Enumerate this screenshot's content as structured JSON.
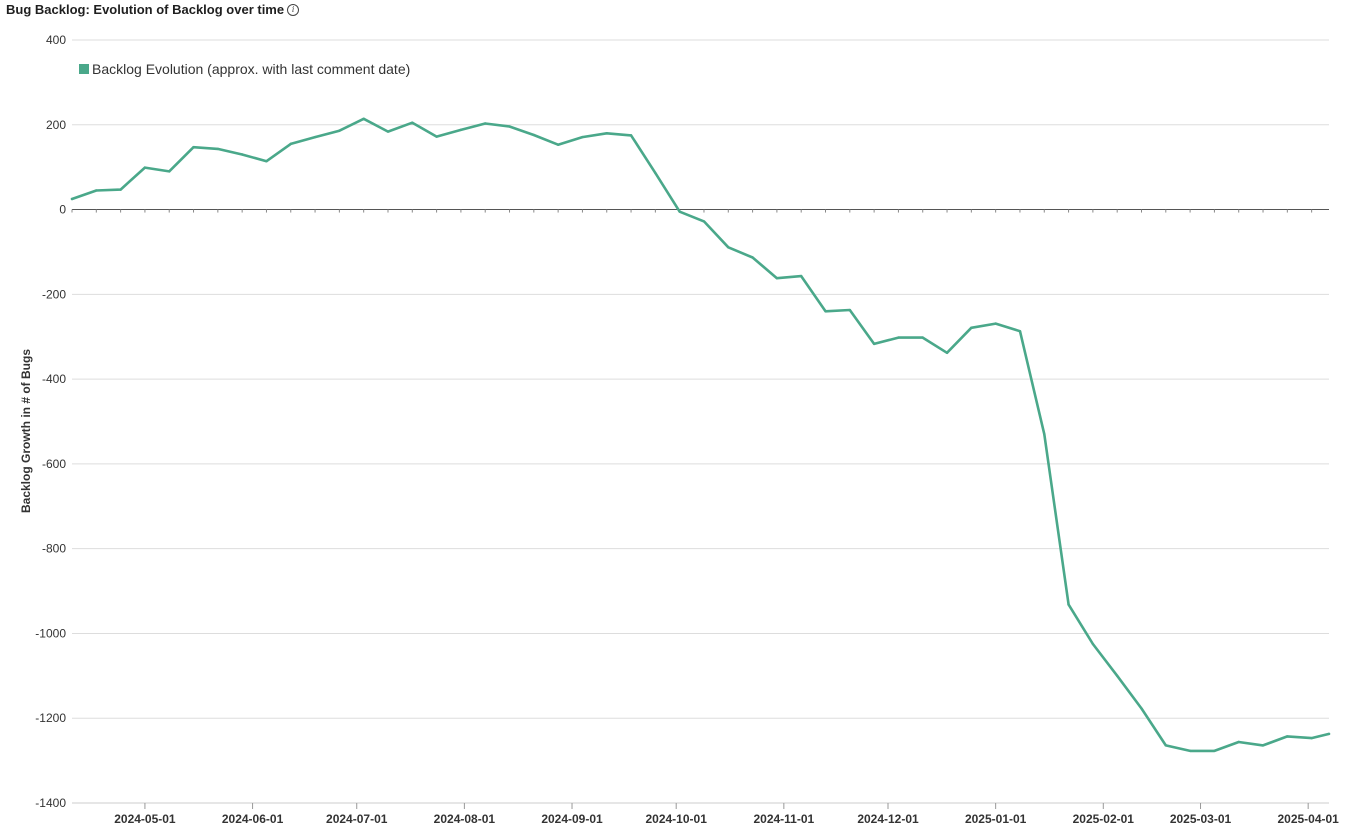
{
  "title": "Bug Backlog: Evolution of Backlog over time",
  "icons": {
    "info": "info-circle-icon"
  },
  "colors": {
    "series": "#4aa88a",
    "grid": "#dddddd",
    "zero_line": "#555555",
    "axis_text": "#333333"
  },
  "chart_data": {
    "type": "line",
    "title": "Bug Backlog: Evolution of Backlog over time",
    "xlabel": "",
    "ylabel": "Backlog Growth in # of Bugs",
    "ylim": [
      -1400,
      400
    ],
    "xlim": [
      "2024-04-10",
      "2025-04-07"
    ],
    "yticks": [
      400,
      200,
      0,
      -200,
      -400,
      -600,
      -800,
      -1000,
      -1200,
      -1400
    ],
    "xticks": [
      "2024-05-01",
      "2024-06-01",
      "2024-07-01",
      "2024-08-01",
      "2024-09-01",
      "2024-10-01",
      "2024-11-01",
      "2024-12-01",
      "2025-01-01",
      "2025-02-01",
      "2025-03-01",
      "2025-04-01"
    ],
    "grid": true,
    "legend": "top-left",
    "series": [
      {
        "name": "Backlog Evolution (approx. with last comment date)",
        "color": "#4aa88a",
        "x": [
          "2024-04-10",
          "2024-04-17",
          "2024-04-24",
          "2024-05-01",
          "2024-05-08",
          "2024-05-15",
          "2024-05-22",
          "2024-05-29",
          "2024-06-05",
          "2024-06-12",
          "2024-06-19",
          "2024-06-26",
          "2024-07-03",
          "2024-07-10",
          "2024-07-17",
          "2024-07-24",
          "2024-07-31",
          "2024-08-07",
          "2024-08-14",
          "2024-08-21",
          "2024-08-28",
          "2024-09-04",
          "2024-09-11",
          "2024-09-18",
          "2024-09-25",
          "2024-10-02",
          "2024-10-09",
          "2024-10-16",
          "2024-10-23",
          "2024-10-30",
          "2024-11-06",
          "2024-11-13",
          "2024-11-20",
          "2024-11-27",
          "2024-12-04",
          "2024-12-11",
          "2024-12-18",
          "2024-12-25",
          "2025-01-01",
          "2025-01-08",
          "2025-01-15",
          "2025-01-22",
          "2025-01-29",
          "2025-02-05",
          "2025-02-12",
          "2025-02-19",
          "2025-02-26",
          "2025-03-05",
          "2025-03-12",
          "2025-03-19",
          "2025-03-26",
          "2025-04-02",
          "2025-04-07"
        ],
        "y": [
          25,
          45,
          47,
          99,
          90,
          147,
          143,
          130,
          114,
          155,
          171,
          186,
          214,
          184,
          205,
          172,
          188,
          203,
          196,
          176,
          153,
          171,
          180,
          175,
          86,
          -5,
          -28,
          -89,
          -113,
          -162,
          -157,
          -240,
          -237,
          -317,
          -302,
          -302,
          -338,
          -279,
          -269,
          -287,
          -530,
          -932,
          -1025,
          -1100,
          -1177,
          -1264,
          -1277,
          -1277,
          -1256,
          -1264,
          -1243,
          -1247,
          -1237
        ]
      }
    ]
  }
}
